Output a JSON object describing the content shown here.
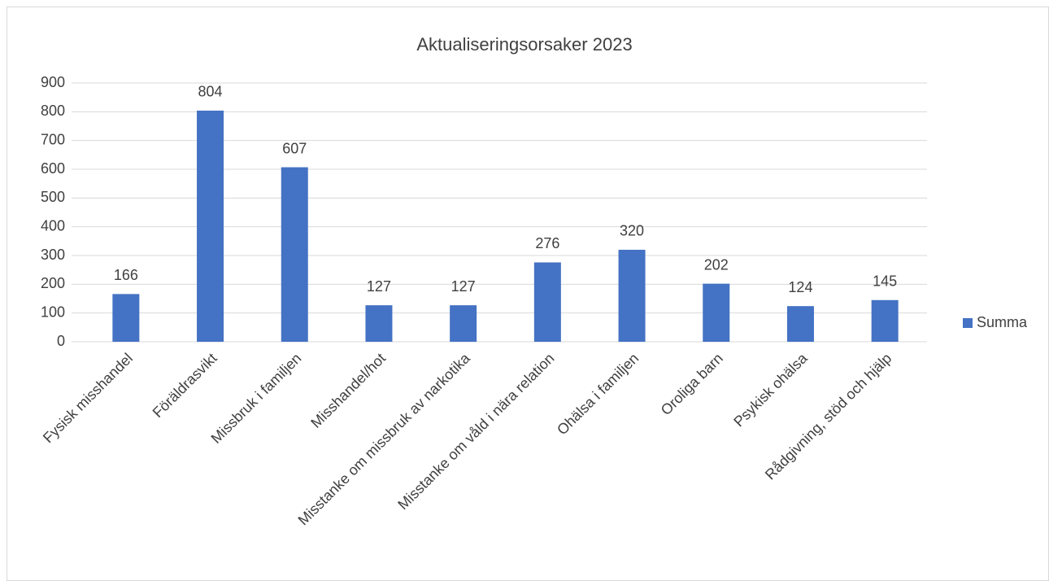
{
  "chart_data": {
    "type": "bar",
    "title": "Aktualiseringsorsaker 2023",
    "categories": [
      "Fysisk misshandel",
      "Föräldrasvikt",
      "Missbruk i familjen",
      "Misshandel/hot",
      "Misstanke om missbruk av narkotika",
      "Misstanke om våld i nära relation",
      "Ohälsa i familjen",
      "Oroliga barn",
      "Psykisk ohälsa",
      "Rådgivning, stöd och hjälp"
    ],
    "series": [
      {
        "name": "Summa",
        "color": "#4472c4",
        "values": [
          166,
          804,
          607,
          127,
          127,
          276,
          320,
          202,
          124,
          145
        ]
      }
    ],
    "ylim": [
      0,
      900
    ],
    "yticks": [
      0,
      100,
      200,
      300,
      400,
      500,
      600,
      700,
      800,
      900
    ],
    "grid": true,
    "legend": "right",
    "data_labels": true
  }
}
